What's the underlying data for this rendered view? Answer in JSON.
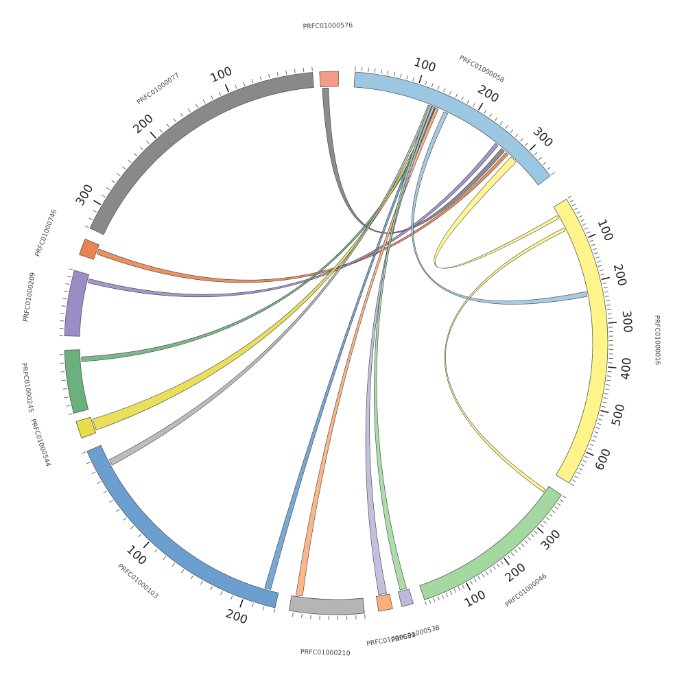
{
  "chart_data": {
    "type": "chord",
    "title": "",
    "contigs": [
      {
        "id": "c058",
        "name": "PRFC01000058",
        "length": 350,
        "color": "#9CC7E2",
        "ticks": [
          100,
          200,
          300
        ]
      },
      {
        "id": "c016",
        "name": "PRFC01000016",
        "length": 680,
        "color": "#FFF48A",
        "ticks": [
          100,
          200,
          300,
          400,
          500,
          600
        ]
      },
      {
        "id": "c046",
        "name": "PRFC01000046",
        "length": 390,
        "color": "#A3D8A0",
        "ticks": [
          100,
          200,
          300
        ]
      },
      {
        "id": "c538",
        "name": "PRFC01000538",
        "length": 20,
        "color": "#BDB9DB",
        "ticks": []
      },
      {
        "id": "c539",
        "name": "PRFC01000539",
        "length": 20,
        "color": "#F9AF7C",
        "ticks": []
      },
      {
        "id": "c210",
        "name": "PRFC01000210",
        "length": 85,
        "color": "#B5B5B5",
        "ticks": []
      },
      {
        "id": "c103",
        "name": "PRFC01000103",
        "length": 230,
        "color": "#6A9FD0",
        "ticks": [
          100,
          200
        ]
      },
      {
        "id": "c544",
        "name": "PRFC01000544",
        "length": 20,
        "color": "#E8DC4A",
        "ticks": []
      },
      {
        "id": "c245",
        "name": "PRFC01000245",
        "length": 75,
        "color": "#6BB07F",
        "ticks": []
      },
      {
        "id": "c209",
        "name": "PRFC01000209",
        "length": 90,
        "color": "#9B8CC6",
        "ticks": []
      },
      {
        "id": "c746",
        "name": "PRFC01000746",
        "length": 20,
        "color": "#E9844F",
        "ticks": []
      },
      {
        "id": "c077",
        "name": "PRFC01000077",
        "length": 330,
        "color": "#898989",
        "ticks": [
          100,
          200,
          300
        ]
      },
      {
        "id": "c576",
        "name": "PRFC01000576",
        "length": 20,
        "color": "#F79A88",
        "ticks": []
      }
    ],
    "links": [
      {
        "source": "c058",
        "source_range": [
          265,
          272
        ],
        "target": "c576",
        "target_range": [
          2,
          9
        ],
        "color": "#7F7F7F"
      },
      {
        "source": "c058",
        "source_range": [
          275,
          280
        ],
        "target": "c746",
        "target_range": [
          8,
          15
        ],
        "color": "#E9844F"
      },
      {
        "source": "c058",
        "source_range": [
          252,
          258
        ],
        "target": "c209",
        "target_range": [
          78,
          84
        ],
        "color": "#9B8CC6"
      },
      {
        "source": "c058",
        "source_range": [
          286,
          298
        ],
        "target": "c016",
        "target_range": [
          22,
          30
        ],
        "color": "#FFF48A"
      },
      {
        "source": "c058",
        "source_range": [
          153,
          160
        ],
        "target": "c016",
        "target_range": [
          220,
          232
        ],
        "color": "#9CC7E2"
      },
      {
        "source": "c058",
        "source_range": [
          137,
          142
        ],
        "target": "c245",
        "target_range": [
          60,
          66
        ],
        "color": "#6BB07F"
      },
      {
        "source": "c058",
        "source_range": [
          133,
          137
        ],
        "target": "c544",
        "target_range": [
          3,
          17
        ],
        "color": "#E8DC4A"
      },
      {
        "source": "c058",
        "source_range": [
          129,
          133
        ],
        "target": "c103",
        "target_range": [
          216,
          222
        ],
        "color": "#6A9FD0"
      },
      {
        "source": "c058",
        "source_range": [
          125,
          129
        ],
        "target": "c103",
        "target_range": [
          16,
          22
        ],
        "color": "#B5B5B5"
      },
      {
        "source": "c058",
        "source_range": [
          138,
          143
        ],
        "target": "c210",
        "target_range": [
          72,
          80
        ],
        "color": "#F9AF7C"
      },
      {
        "source": "c058",
        "source_range": [
          132,
          136
        ],
        "target": "c539",
        "target_range": [
          4,
          16
        ],
        "color": "#BDB9DB"
      },
      {
        "source": "c058",
        "source_range": [
          127,
          131
        ],
        "target": "c538",
        "target_range": [
          4,
          16
        ],
        "color": "#A3D8A0"
      },
      {
        "source": "c016",
        "source_range": [
          56,
          64
        ],
        "target": "c046",
        "target_range": [
          372,
          380
        ],
        "color": "#FFF48A"
      }
    ]
  }
}
